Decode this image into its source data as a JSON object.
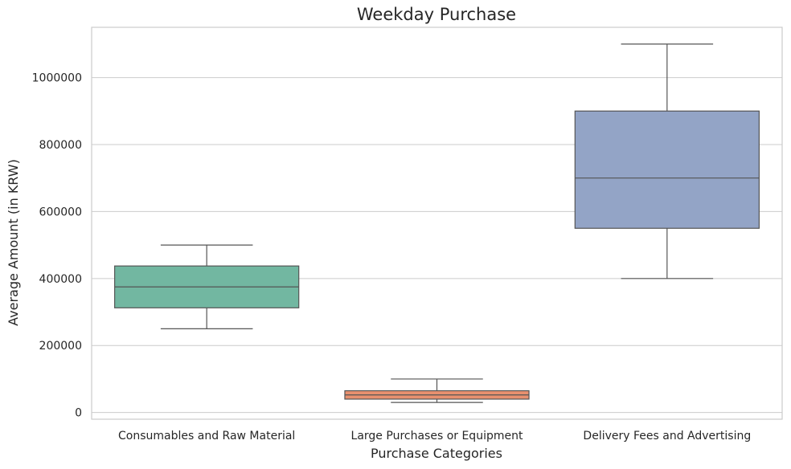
{
  "chart_data": {
    "type": "box",
    "title": "Weekday Purchase",
    "xlabel": "Purchase Categories",
    "ylabel": "Average Amount (in KRW)",
    "ylim": [
      -20000,
      1150000
    ],
    "yticks": [
      0,
      200000,
      400000,
      600000,
      800000,
      1000000
    ],
    "ytick_labels": [
      "0",
      "200000",
      "400000",
      "600000",
      "800000",
      "1000000"
    ],
    "grid": true,
    "categories": [
      "Consumables and Raw Material",
      "Large Purchases or Equipment",
      "Delivery Fees and Advertising"
    ],
    "boxes": [
      {
        "category": "Consumables and Raw Material",
        "whisker_low": 250000,
        "q1": 312500,
        "median": 375000,
        "q3": 437500,
        "whisker_high": 500000,
        "color": "#72b7a1"
      },
      {
        "category": "Large Purchases or Equipment",
        "whisker_low": 30000,
        "q1": 40000,
        "median": 52500,
        "q3": 65000,
        "whisker_high": 100000,
        "color": "#e8906f"
      },
      {
        "category": "Delivery Fees and Advertising",
        "whisker_low": 400000,
        "q1": 550000,
        "median": 700000,
        "q3": 900000,
        "whisker_high": 1100000,
        "color": "#93a4c6"
      }
    ],
    "line_color": "#555555",
    "grid_color": "#cccccc",
    "frame_color": "#cccccc"
  }
}
